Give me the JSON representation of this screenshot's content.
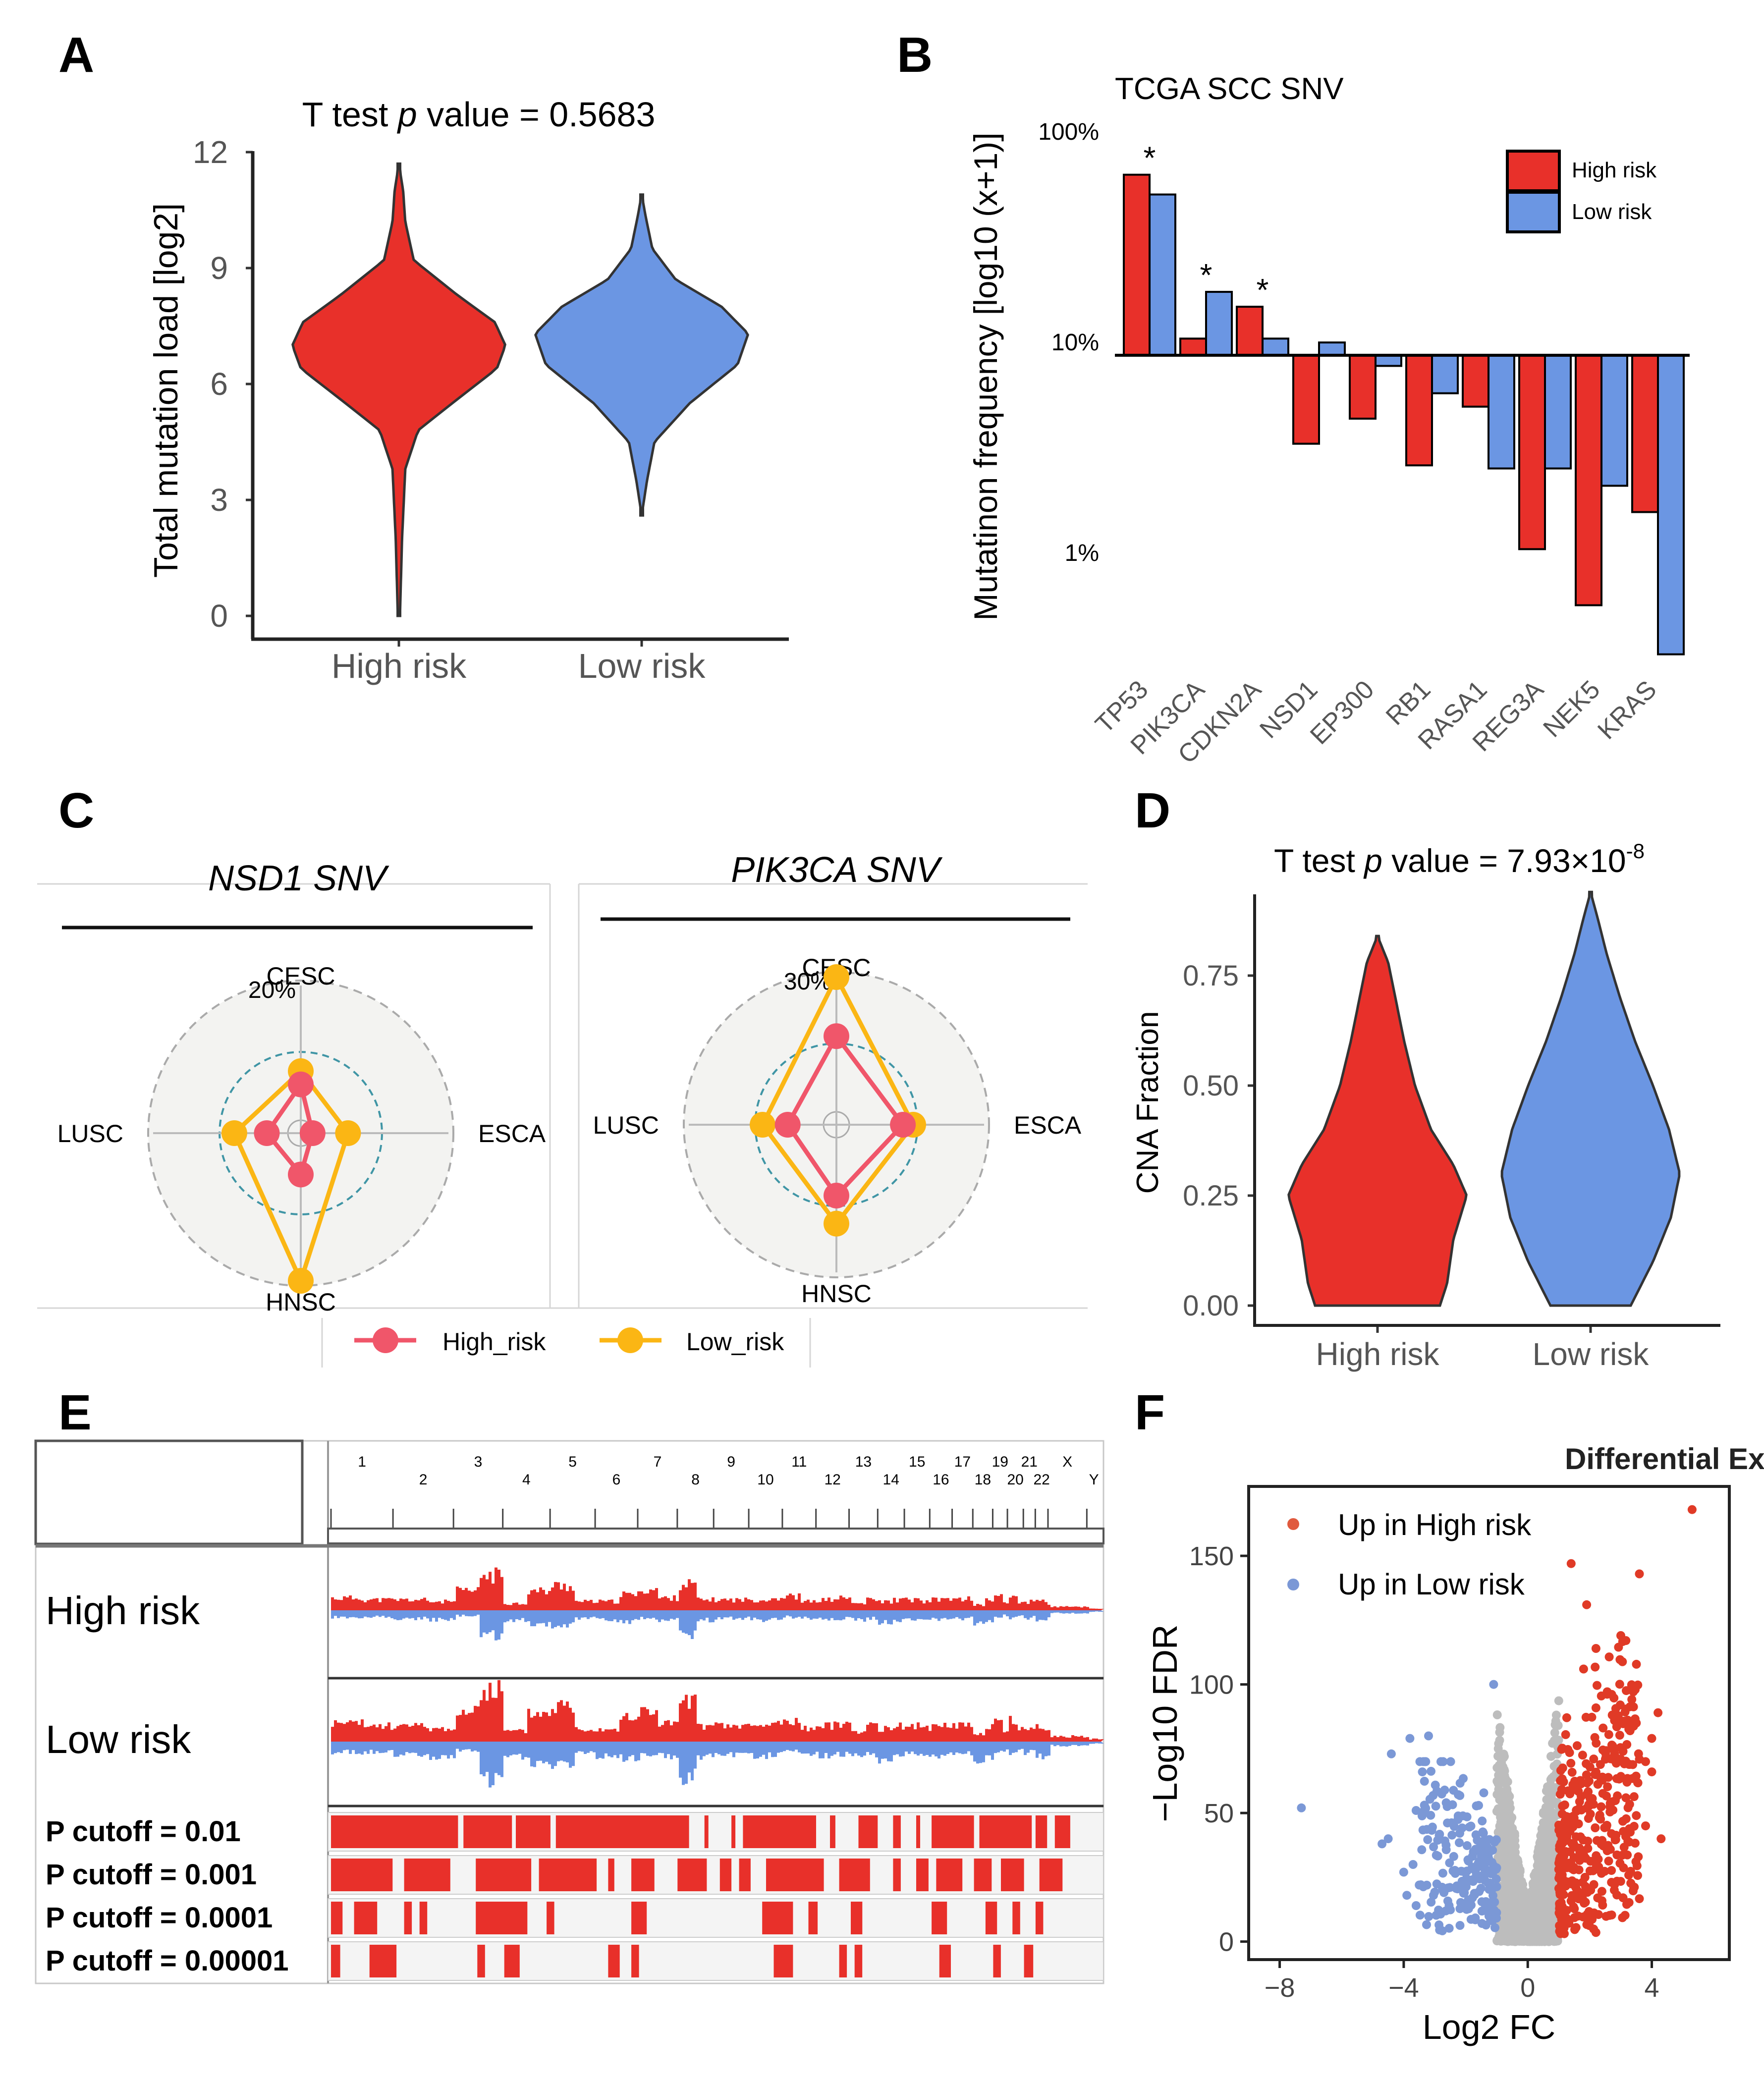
{
  "colors": {
    "high": "#e8302a",
    "low": "#6b96e3",
    "radar_high": "#f0566a",
    "radar_low": "#fbb614",
    "grey": "#bdbdbd"
  },
  "panel_labels": [
    "A",
    "B",
    "C",
    "D",
    "E",
    "F"
  ],
  "chart_data": [
    {
      "id": "A",
      "type": "violin",
      "title_prefix": "T test ",
      "title_italic": "p",
      "title_suffix": " value = 0.5683",
      "xlabel": "",
      "ylabel": "Total mutation load [log2]",
      "ylim": [
        0,
        12
      ],
      "yticks": [
        0,
        3,
        6,
        9,
        12
      ],
      "categories": [
        "High risk",
        "Low risk"
      ],
      "series": [
        {
          "name": "High risk",
          "color": "#e8302a",
          "range": [
            0,
            11.7
          ],
          "profile": [
            [
              0,
              0.01
            ],
            [
              2,
              0.03
            ],
            [
              3.8,
              0.06
            ],
            [
              4.8,
              0.18
            ],
            [
              5.5,
              0.5
            ],
            [
              6.4,
              0.92
            ],
            [
              7,
              1.0
            ],
            [
              7.6,
              0.9
            ],
            [
              8.3,
              0.55
            ],
            [
              9.2,
              0.14
            ],
            [
              10.2,
              0.06
            ],
            [
              11,
              0.04
            ],
            [
              11.7,
              0.0
            ]
          ]
        },
        {
          "name": "Low risk",
          "color": "#6b96e3",
          "range": [
            2.6,
            10.9
          ],
          "profile": [
            [
              2.6,
              0.0
            ],
            [
              3.5,
              0.05
            ],
            [
              4.5,
              0.12
            ],
            [
              5.5,
              0.45
            ],
            [
              6.5,
              0.9
            ],
            [
              7.3,
              1.0
            ],
            [
              8,
              0.75
            ],
            [
              8.7,
              0.32
            ],
            [
              9.5,
              0.1
            ],
            [
              10.3,
              0.04
            ],
            [
              10.9,
              0.0
            ]
          ]
        }
      ]
    },
    {
      "id": "B",
      "type": "bar",
      "title": "TCGA SCC SNV",
      "xlabel": "",
      "ylabel": "Mutatinon frequency [log10 (x+1)]",
      "yticks": [
        {
          "label": "100%",
          "value": 100
        },
        {
          "label": "10%",
          "value": 10
        },
        {
          "label": "1%",
          "value": 1
        }
      ],
      "baseline": 10,
      "scale": "log",
      "categories": [
        "TP53",
        "PIK3CA",
        "CDKN2A",
        "NSD1",
        "EP300",
        "RB1",
        "RASA1",
        "REG3A",
        "NEK5",
        "KRAS"
      ],
      "series": [
        {
          "name": "High risk",
          "color": "#e8302a",
          "values": [
            72,
            12,
            17,
            3.8,
            5.0,
            3.0,
            5.7,
            1.2,
            0.65,
            1.8
          ]
        },
        {
          "name": "Low risk",
          "color": "#6b96e3",
          "values": [
            58,
            20,
            12,
            11.5,
            8.9,
            6.6,
            2.9,
            2.9,
            2.4,
            0.38
          ]
        }
      ],
      "significance": [
        "*",
        "*",
        "*",
        "",
        "",
        "",
        "",
        "",
        "",
        ""
      ],
      "legend": [
        "High risk",
        "Low risk"
      ],
      "legend_position": "top-right"
    },
    {
      "id": "C",
      "type": "radar",
      "legend": [
        "High_risk",
        "Low_risk"
      ],
      "legend_position": "bottom",
      "charts": [
        {
          "title": "NSD1 SNV",
          "max_label": "20%",
          "axes": [
            "CESC",
            "ESCA",
            "HNSC",
            "LUSC"
          ],
          "series": [
            {
              "name": "High_risk",
              "values": [
                0.33,
                0.08,
                0.28,
                0.23
              ]
            },
            {
              "name": "Low_risk",
              "values": [
                0.42,
                0.32,
                1.0,
                0.45
              ]
            }
          ]
        },
        {
          "title": "PIK3CA SNV",
          "max_label": "30%",
          "axes": [
            "CESC",
            "ESCA",
            "HNSC",
            "LUSC"
          ],
          "series": [
            {
              "name": "High_risk",
              "values": [
                0.6,
                0.45,
                0.48,
                0.33
              ]
            },
            {
              "name": "Low_risk",
              "values": [
                1.0,
                0.52,
                0.67,
                0.5
              ]
            }
          ]
        }
      ]
    },
    {
      "id": "D",
      "type": "violin",
      "title_prefix": "T test ",
      "title_italic": "p",
      "title_suffix": " value = 7.93×10",
      "title_sup": "-8",
      "xlabel": "",
      "ylabel": "CNA Fraction",
      "ylim": [
        0,
        0.95
      ],
      "yticks": [
        0.0,
        0.25,
        0.5,
        0.75
      ],
      "ytick_labels": [
        "0.00",
        "0.25",
        "0.50",
        "0.75"
      ],
      "categories": [
        "High risk",
        "Low risk"
      ],
      "series": [
        {
          "name": "High risk",
          "color": "#e8302a",
          "range": [
            0,
            0.84
          ],
          "profile": [
            [
              0,
              0.7
            ],
            [
              0.05,
              0.78
            ],
            [
              0.15,
              0.85
            ],
            [
              0.25,
              1.0
            ],
            [
              0.32,
              0.85
            ],
            [
              0.4,
              0.6
            ],
            [
              0.5,
              0.42
            ],
            [
              0.6,
              0.3
            ],
            [
              0.7,
              0.2
            ],
            [
              0.78,
              0.12
            ],
            [
              0.84,
              0.0
            ]
          ]
        },
        {
          "name": "Low risk",
          "color": "#6b96e3",
          "range": [
            0,
            0.94
          ],
          "profile": [
            [
              0,
              0.45
            ],
            [
              0.1,
              0.7
            ],
            [
              0.2,
              0.9
            ],
            [
              0.3,
              1.0
            ],
            [
              0.4,
              0.88
            ],
            [
              0.5,
              0.7
            ],
            [
              0.6,
              0.5
            ],
            [
              0.7,
              0.33
            ],
            [
              0.8,
              0.18
            ],
            [
              0.88,
              0.08
            ],
            [
              0.94,
              0.0
            ]
          ]
        }
      ]
    },
    {
      "id": "E",
      "type": "genome-cnv",
      "chromosomes": [
        "1",
        "2",
        "3",
        "4",
        "5",
        "6",
        "7",
        "8",
        "9",
        "10",
        "11",
        "12",
        "13",
        "14",
        "15",
        "16",
        "17",
        "18",
        "19",
        "20",
        "21",
        "22",
        "X",
        "Y"
      ],
      "tracks": [
        "High risk",
        "Low risk"
      ],
      "cutoffs": [
        "P cutoff = 0.01",
        "P cutoff = 0.001",
        "P cutoff = 0.0001",
        "P cutoff = 0.00001"
      ]
    },
    {
      "id": "F",
      "type": "scatter",
      "title": "Differential Expression mRNAs",
      "xlabel": "Log2 FC",
      "ylabel": "−Log10 FDR",
      "xlim": [
        -9,
        6.5
      ],
      "ylim": [
        -7,
        177
      ],
      "xticks": [
        -8,
        -4,
        0,
        4
      ],
      "yticks": [
        0,
        50,
        100,
        150
      ],
      "legend": [
        "Up in High risk",
        "Up in Low risk"
      ],
      "legend_position": "top-left",
      "outliers": [
        {
          "group": "up",
          "points": [
            [
              5.3,
              168
            ],
            [
              3.6,
              143
            ],
            [
              1.4,
              147
            ],
            [
              1.9,
              131
            ],
            [
              3.0,
              119
            ],
            [
              2.2,
              114
            ],
            [
              1.8,
              106
            ],
            [
              4.2,
              89
            ],
            [
              3.5,
              85
            ],
            [
              3.3,
              82
            ],
            [
              4.0,
              79
            ],
            [
              2.8,
              73
            ],
            [
              3.8,
              70
            ],
            [
              4.0,
              66
            ],
            [
              3.2,
              62
            ],
            [
              3.5,
              49
            ],
            [
              3.8,
              45
            ],
            [
              4.3,
              40
            ],
            [
              2.7,
              42
            ]
          ]
        },
        {
          "group": "down",
          "points": [
            [
              -1.1,
              100
            ],
            [
              -7.3,
              52
            ],
            [
              -3.8,
              79
            ],
            [
              -3.2,
              80
            ],
            [
              -4.4,
              73
            ],
            [
              -2.8,
              70
            ],
            [
              -3.4,
              66
            ],
            [
              -3.6,
              51
            ],
            [
              -4.5,
              40
            ],
            [
              -4.7,
              38
            ],
            [
              -3.7,
              30
            ],
            [
              -4.0,
              27
            ],
            [
              -3.5,
              22
            ],
            [
              -3.9,
              18
            ],
            [
              -3.6,
              14
            ]
          ]
        }
      ]
    }
  ]
}
